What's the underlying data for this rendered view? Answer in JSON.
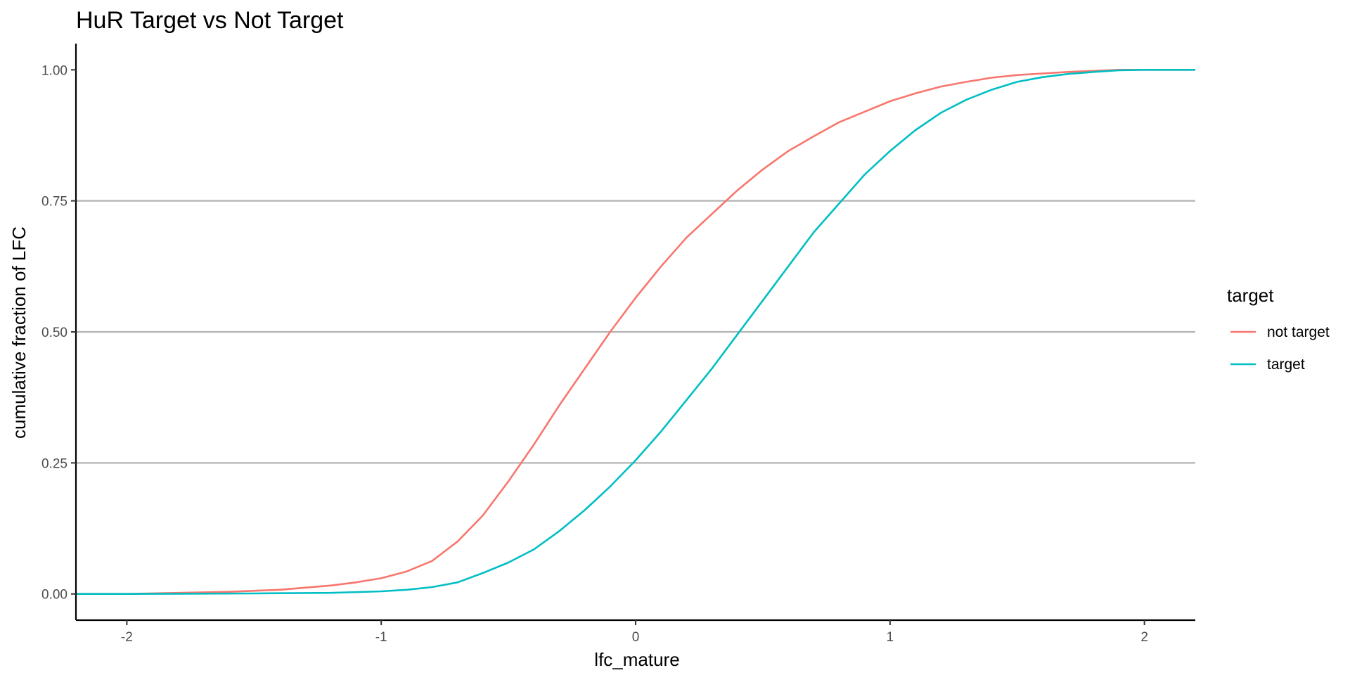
{
  "chart_data": {
    "type": "line",
    "title": "HuR Target vs Not Target",
    "xlabel": "lfc_mature",
    "ylabel": "cumulative fraction of LFC",
    "xlim": [
      -2.2,
      2.2
    ],
    "ylim": [
      -0.05,
      1.05
    ],
    "x_ticks": [
      -2,
      -1,
      0,
      1,
      2
    ],
    "x_tick_labels": [
      "-2",
      "-1",
      "0",
      "1",
      "2"
    ],
    "y_ticks": [
      0,
      0.25,
      0.5,
      0.75,
      1.0
    ],
    "y_tick_labels": [
      "0.00",
      "0.25",
      "0.50",
      "0.75",
      "1.00"
    ],
    "grid": "horizontal major",
    "legend": {
      "title": "target",
      "placement": "right"
    },
    "series": [
      {
        "name": "not target",
        "color": "#F8766D",
        "points": [
          [
            -2.2,
            0
          ],
          [
            -2.0,
            0.0
          ],
          [
            -1.8,
            0.002
          ],
          [
            -1.6,
            0.004
          ],
          [
            -1.4,
            0.008
          ],
          [
            -1.2,
            0.016
          ],
          [
            -1.1,
            0.022
          ],
          [
            -1.0,
            0.03
          ],
          [
            -0.9,
            0.043
          ],
          [
            -0.8,
            0.063
          ],
          [
            -0.7,
            0.1
          ],
          [
            -0.6,
            0.15
          ],
          [
            -0.5,
            0.215
          ],
          [
            -0.4,
            0.285
          ],
          [
            -0.3,
            0.36
          ],
          [
            -0.2,
            0.43
          ],
          [
            -0.1,
            0.5
          ],
          [
            0.0,
            0.565
          ],
          [
            0.1,
            0.625
          ],
          [
            0.2,
            0.68
          ],
          [
            0.3,
            0.725
          ],
          [
            0.4,
            0.77
          ],
          [
            0.5,
            0.81
          ],
          [
            0.6,
            0.845
          ],
          [
            0.7,
            0.873
          ],
          [
            0.8,
            0.9
          ],
          [
            0.9,
            0.92
          ],
          [
            1.0,
            0.94
          ],
          [
            1.1,
            0.955
          ],
          [
            1.2,
            0.968
          ],
          [
            1.3,
            0.977
          ],
          [
            1.4,
            0.985
          ],
          [
            1.5,
            0.99
          ],
          [
            1.6,
            0.993
          ],
          [
            1.7,
            0.996
          ],
          [
            1.8,
            0.998
          ],
          [
            1.9,
            1.0
          ],
          [
            2.0,
            1.0
          ],
          [
            2.2,
            1.0
          ]
        ]
      },
      {
        "name": "target",
        "color": "#00BFC4",
        "points": [
          [
            -2.2,
            0
          ],
          [
            -2.0,
            0.0
          ],
          [
            -1.5,
            0.001
          ],
          [
            -1.2,
            0.002
          ],
          [
            -1.0,
            0.005
          ],
          [
            -0.9,
            0.008
          ],
          [
            -0.8,
            0.013
          ],
          [
            -0.7,
            0.022
          ],
          [
            -0.6,
            0.04
          ],
          [
            -0.5,
            0.06
          ],
          [
            -0.4,
            0.085
          ],
          [
            -0.3,
            0.12
          ],
          [
            -0.2,
            0.16
          ],
          [
            -0.1,
            0.205
          ],
          [
            0.0,
            0.255
          ],
          [
            0.1,
            0.31
          ],
          [
            0.2,
            0.37
          ],
          [
            0.3,
            0.43
          ],
          [
            0.4,
            0.495
          ],
          [
            0.5,
            0.56
          ],
          [
            0.6,
            0.625
          ],
          [
            0.7,
            0.69
          ],
          [
            0.8,
            0.745
          ],
          [
            0.9,
            0.8
          ],
          [
            1.0,
            0.845
          ],
          [
            1.1,
            0.885
          ],
          [
            1.2,
            0.918
          ],
          [
            1.3,
            0.943
          ],
          [
            1.4,
            0.962
          ],
          [
            1.5,
            0.977
          ],
          [
            1.6,
            0.986
          ],
          [
            1.7,
            0.992
          ],
          [
            1.8,
            0.996
          ],
          [
            1.9,
            0.999
          ],
          [
            2.0,
            1.0
          ],
          [
            2.2,
            1.0
          ]
        ]
      }
    ]
  }
}
